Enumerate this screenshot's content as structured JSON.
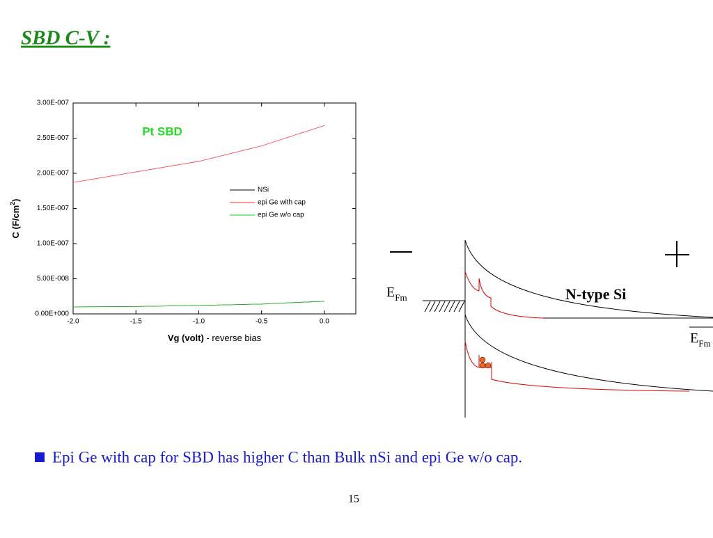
{
  "slide_title": "SBD C-V :",
  "chart_data": {
    "type": "line",
    "annotation": "Pt SBD",
    "annotation_color": "#22dd22",
    "x_label": {
      "bold": "Vg (volt)",
      "rest": " - reverse bias"
    },
    "y_label": {
      "text": "C (F/cm",
      "sup": "2",
      "tail": ")"
    },
    "x": [
      -2.0,
      -1.5,
      -1.0,
      -0.5,
      0.0
    ],
    "series": [
      {
        "name": "NSi",
        "color": "#000000",
        "values": [
          1e-08,
          1.05e-08,
          1.2e-08,
          1.4e-08,
          1.8e-08
        ]
      },
      {
        "name": "epi Ge with cap",
        "color": "#ff3333",
        "values": [
          1.87e-07,
          2.02e-07,
          2.17e-07,
          2.39e-07,
          2.68e-07
        ]
      },
      {
        "name": "epi Ge w/o cap",
        "color": "#22cc22",
        "values": [
          1e-08,
          1.05e-08,
          1.2e-08,
          1.4e-08,
          1.8e-08
        ]
      }
    ],
    "xlim": [
      -2.0,
      0.25
    ],
    "xticks": [
      {
        "value": -2,
        "label": "-2.0"
      },
      {
        "value": -1.5,
        "label": "-1.5"
      },
      {
        "value": -1,
        "label": "-1.0"
      },
      {
        "value": -0.5,
        "label": "-0.5"
      },
      {
        "value": 0,
        "label": "0.0"
      }
    ],
    "ylim": [
      0,
      3e-07
    ],
    "yticks": [
      {
        "value": 0,
        "label": "0.00E+000"
      },
      {
        "value": 5e-08,
        "label": "5.00E-008"
      },
      {
        "value": 1e-07,
        "label": "1.00E-007"
      },
      {
        "value": 1.5e-07,
        "label": "1.50E-007"
      },
      {
        "value": 2e-07,
        "label": "2.00E-007"
      },
      {
        "value": 2.5e-07,
        "label": "2.50E-007"
      },
      {
        "value": 3e-07,
        "label": "3.00E-007"
      }
    ]
  },
  "diagram": {
    "efm_left": {
      "main": "E",
      "sub": "Fm"
    },
    "material": "N-type Si",
    "efm_right": {
      "main": "E",
      "sub": "Fm"
    }
  },
  "bullet": "Epi Ge with cap for SBD has higher C than Bulk nSi and epi Ge w/o cap.",
  "page_number": "15"
}
